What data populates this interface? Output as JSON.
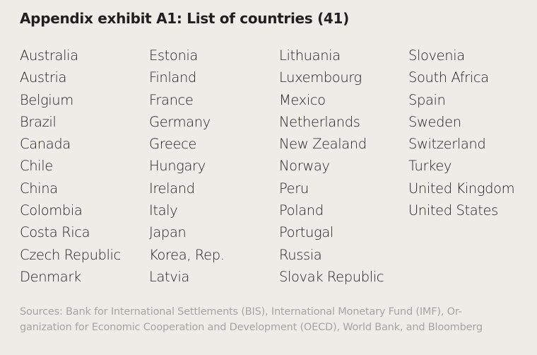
{
  "title": "Appendix exhibit A1: List of countries (41)",
  "columns": [
    [
      "Australia",
      "Austria",
      "Belgium",
      "Brazil",
      "Canada",
      "Chile",
      "China",
      "Colombia",
      "Costa Rica",
      "Czech Republic",
      "Denmark"
    ],
    [
      "Estonia",
      "Finland",
      "France",
      "Germany",
      "Greece",
      "Hungary",
      "Ireland",
      "Italy",
      "Japan",
      "Korea, Rep.",
      "Latvia"
    ],
    [
      "Lithuania",
      "Luxembourg",
      "Mexico",
      "Netherlands",
      "New Zealand",
      "Norway",
      "Peru",
      "Poland",
      "Portugal",
      "Russia",
      "Slovak Republic"
    ],
    [
      "Slovenia",
      "South Africa",
      "Spain",
      "Sweden",
      "Switzerland",
      "Turkey",
      "United Kingdom",
      "United States"
    ]
  ],
  "sources": {
    "line1": "Sources: Bank for International Settlements (BIS), International Monetary Fund (IMF), Or-",
    "line2": "ganization for Economic Cooperation and Development (OECD), World Bank, and Bloomberg"
  }
}
